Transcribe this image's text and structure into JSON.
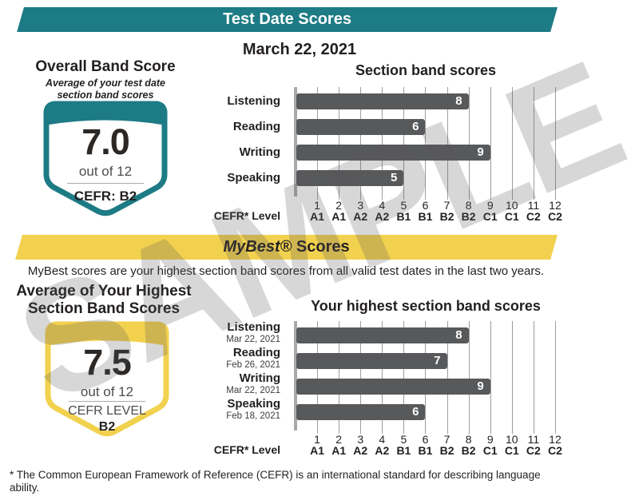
{
  "header": {
    "title": "Test Date Scores"
  },
  "test_date": {
    "date": "March 22, 2021",
    "overall": {
      "title": "Overall Band Score",
      "subtitle": "Average of your test date\nsection band scores",
      "score": "7.0",
      "out_of": "out of 12",
      "cefr": "CEFR: B2"
    }
  },
  "mybest": {
    "banner_italic": "MyBest®",
    "banner_rest": " Scores",
    "description": "MyBest scores are your highest section band scores from all valid test dates in the last two years.",
    "average": {
      "title": "Average of Your Highest\nSection Band Scores",
      "score": "7.5",
      "out_of": "out of 12",
      "cefr_label": "CEFR LEVEL",
      "cefr_value": "B2"
    }
  },
  "chart_data": [
    {
      "type": "bar",
      "title": "Section band scores",
      "categories": [
        "Listening",
        "Reading",
        "Writing",
        "Speaking"
      ],
      "values": [
        8,
        6,
        9,
        5
      ],
      "xlabel": "CEFR* Level",
      "x_ticks": [
        "1",
        "2",
        "3",
        "4",
        "5",
        "6",
        "7",
        "8",
        "9",
        "10",
        "11",
        "12"
      ],
      "cefr_ticks": [
        "A1",
        "A1",
        "A2",
        "A2",
        "B1",
        "B1",
        "B2",
        "B2",
        "C1",
        "C1",
        "C2",
        "C2"
      ],
      "xlim": [
        0,
        12
      ],
      "grid": true,
      "bar_color": "#58595b",
      "orientation": "horizontal"
    },
    {
      "type": "bar",
      "title": "Your highest section band scores",
      "categories": [
        "Listening",
        "Reading",
        "Writing",
        "Speaking"
      ],
      "dates": [
        "Mar 22, 2021",
        "Feb 26, 2021",
        "Mar 22, 2021",
        "Feb 18, 2021"
      ],
      "values": [
        8,
        7,
        9,
        6
      ],
      "xlabel": "CEFR* Level",
      "x_ticks": [
        "1",
        "2",
        "3",
        "4",
        "5",
        "6",
        "7",
        "8",
        "9",
        "10",
        "11",
        "12"
      ],
      "cefr_ticks": [
        "A1",
        "A1",
        "A2",
        "A2",
        "B1",
        "B1",
        "B2",
        "B2",
        "C1",
        "C1",
        "C2",
        "C2"
      ],
      "xlim": [
        0,
        12
      ],
      "grid": true,
      "bar_color": "#58595b",
      "orientation": "horizontal"
    }
  ],
  "footnote": "* The Common European Framework of Reference (CEFR) is an international standard for describing language\nability.",
  "watermark": "SAMPLE",
  "colors": {
    "teal": "#1d7b85",
    "yellow": "#f2d14e",
    "bar_gray": "#58595b",
    "grid_gray": "#9b9da0",
    "text_dark": "#231f20",
    "watermark_gray": "#d4d5d6"
  }
}
